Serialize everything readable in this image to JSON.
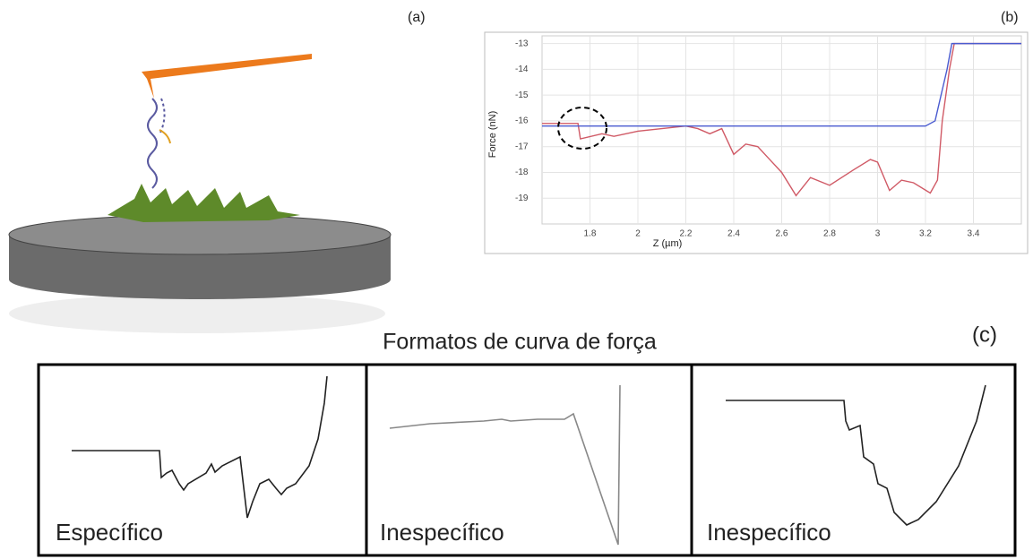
{
  "panel_labels": [
    "(a)",
    "(b)",
    "(c)"
  ],
  "chart_data": {
    "type": "line",
    "xlabel": "Z (µm)",
    "ylabel": "Force (nN)",
    "xlim": [
      1.6,
      3.6
    ],
    "ylim": [
      -20,
      -12.7
    ],
    "xticks": [
      1.8,
      2,
      2.2,
      2.4,
      2.6,
      2.8,
      3,
      3.2,
      3.4
    ],
    "yticks": [
      -19,
      -18,
      -17,
      -16,
      -15,
      -14,
      -13
    ],
    "grid": true,
    "series": [
      {
        "color": "#d05a66",
        "x": [
          1.6,
          1.75,
          1.76,
          1.85,
          1.9,
          2.0,
          2.1,
          2.2,
          2.25,
          2.3,
          2.35,
          2.4,
          2.45,
          2.5,
          2.55,
          2.6,
          2.66,
          2.72,
          2.8,
          2.9,
          2.97,
          3.0,
          3.05,
          3.1,
          3.15,
          3.22,
          3.25,
          3.27,
          3.3,
          3.32,
          3.6
        ],
        "values": [
          -16.1,
          -16.1,
          -16.7,
          -16.5,
          -16.6,
          -16.4,
          -16.3,
          -16.2,
          -16.3,
          -16.5,
          -16.3,
          -17.3,
          -16.9,
          -17.0,
          -17.5,
          -18.0,
          -18.9,
          -18.2,
          -18.5,
          -17.9,
          -17.5,
          -17.6,
          -18.7,
          -18.3,
          -18.4,
          -18.8,
          -18.3,
          -16.0,
          -14.0,
          -13.0,
          -13.0
        ]
      },
      {
        "color": "#4a5bd0",
        "x": [
          1.6,
          3.2,
          3.24,
          3.29,
          3.31,
          3.6
        ],
        "values": [
          -16.2,
          -16.2,
          -16.0,
          -14.0,
          -13.0,
          -13.0
        ]
      }
    ]
  },
  "section_c": {
    "title": "Formatos de curva de força",
    "panels": [
      {
        "label": "Específico"
      },
      {
        "label": "Inespecífico"
      },
      {
        "label": "Inespecífico"
      }
    ]
  }
}
